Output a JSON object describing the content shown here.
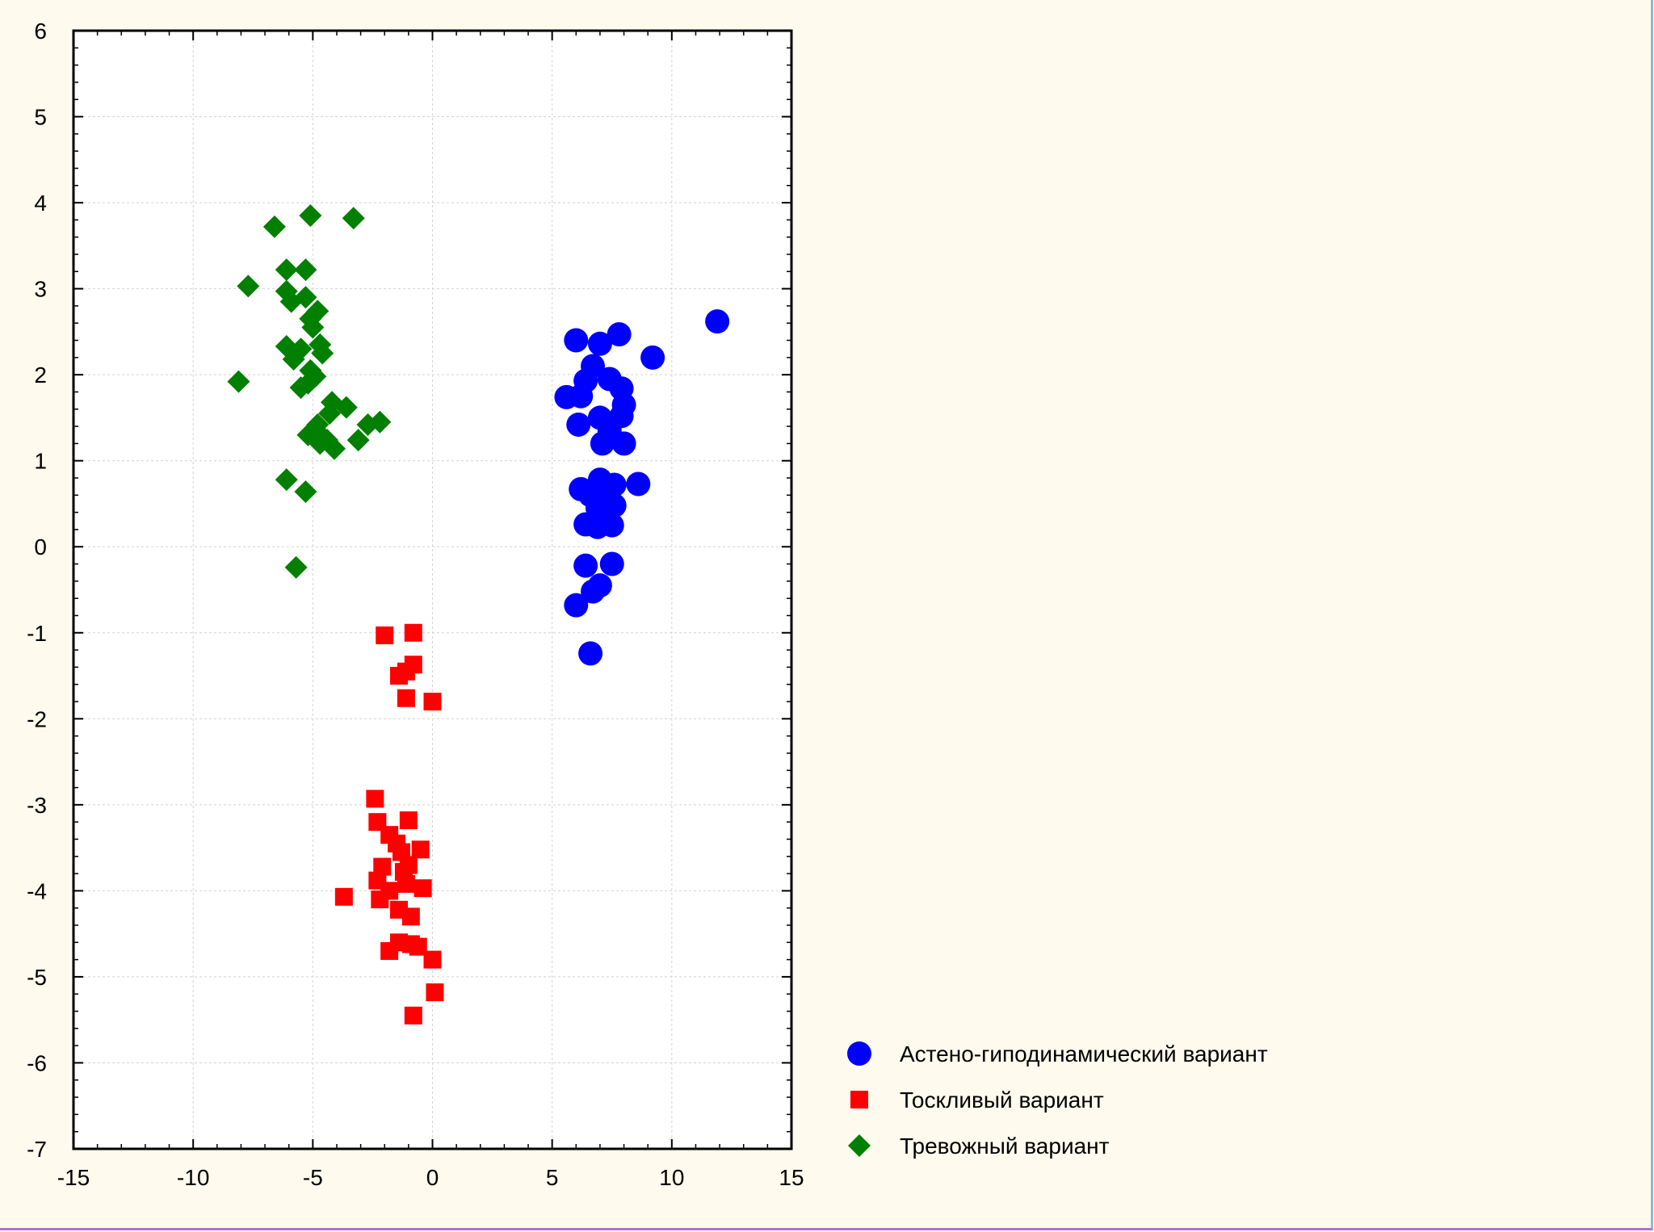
{
  "chart_data": {
    "type": "scatter",
    "title": "",
    "xlabel": "",
    "ylabel": "",
    "xlim": [
      -15,
      15
    ],
    "ylim": [
      -7,
      6
    ],
    "grid": true,
    "legend_position": "bottom-right outside plot",
    "x_ticks": [
      "-15",
      "-10",
      "-5",
      "0",
      "5",
      "10",
      "15"
    ],
    "y_ticks": [
      "6",
      "5",
      "4",
      "3",
      "2",
      "1",
      "0",
      "-1",
      "-2",
      "-3",
      "-4",
      "-5",
      "-6",
      "-7"
    ],
    "series": [
      {
        "name": "Астено-гиподинамический вариант",
        "marker": "circle",
        "color": "#0000ff",
        "points": [
          [
            11.9,
            2.62
          ],
          [
            9.2,
            2.2
          ],
          [
            7.8,
            2.47
          ],
          [
            6.0,
            2.4
          ],
          [
            7.0,
            2.36
          ],
          [
            6.7,
            2.1
          ],
          [
            6.4,
            1.93
          ],
          [
            7.4,
            1.95
          ],
          [
            7.9,
            1.84
          ],
          [
            5.6,
            1.74
          ],
          [
            6.2,
            1.75
          ],
          [
            8.0,
            1.65
          ],
          [
            7.9,
            1.52
          ],
          [
            7.0,
            1.5
          ],
          [
            6.1,
            1.42
          ],
          [
            7.4,
            1.35
          ],
          [
            7.1,
            1.2
          ],
          [
            8.0,
            1.2
          ],
          [
            7.0,
            0.78
          ],
          [
            7.6,
            0.72
          ],
          [
            8.6,
            0.73
          ],
          [
            6.2,
            0.67
          ],
          [
            6.6,
            0.6
          ],
          [
            7.3,
            0.58
          ],
          [
            6.9,
            0.45
          ],
          [
            7.6,
            0.48
          ],
          [
            6.4,
            0.26
          ],
          [
            6.9,
            0.23
          ],
          [
            7.5,
            0.25
          ],
          [
            6.4,
            -0.22
          ],
          [
            7.5,
            -0.2
          ],
          [
            7.0,
            -0.45
          ],
          [
            6.7,
            -0.52
          ],
          [
            6.0,
            -0.68
          ],
          [
            6.6,
            -1.24
          ]
        ]
      },
      {
        "name": "Тоскливый вариант",
        "marker": "square",
        "color": "#ff0000",
        "points": [
          [
            -2.0,
            -1.03
          ],
          [
            -0.8,
            -1.0
          ],
          [
            -0.8,
            -1.37
          ],
          [
            -1.1,
            -1.45
          ],
          [
            -1.4,
            -1.5
          ],
          [
            -1.1,
            -1.76
          ],
          [
            0.0,
            -1.8
          ],
          [
            -2.4,
            -2.93
          ],
          [
            -1.0,
            -3.18
          ],
          [
            -2.3,
            -3.2
          ],
          [
            -1.8,
            -3.35
          ],
          [
            -1.5,
            -3.45
          ],
          [
            -1.3,
            -3.55
          ],
          [
            -0.5,
            -3.52
          ],
          [
            -1.0,
            -3.7
          ],
          [
            -2.1,
            -3.72
          ],
          [
            -1.2,
            -3.78
          ],
          [
            -2.3,
            -3.88
          ],
          [
            -1.1,
            -3.92
          ],
          [
            -0.4,
            -3.97
          ],
          [
            -1.8,
            -4.0
          ],
          [
            -3.7,
            -4.07
          ],
          [
            -2.2,
            -4.1
          ],
          [
            -1.4,
            -4.22
          ],
          [
            -0.9,
            -4.3
          ],
          [
            -1.4,
            -4.6
          ],
          [
            -1.8,
            -4.7
          ],
          [
            -0.6,
            -4.65
          ],
          [
            -0.9,
            -4.62
          ],
          [
            0.0,
            -4.8
          ],
          [
            0.1,
            -5.18
          ],
          [
            -0.8,
            -5.45
          ]
        ]
      },
      {
        "name": "Тревожный вариант",
        "marker": "diamond",
        "color": "#007f00",
        "points": [
          [
            -5.1,
            3.85
          ],
          [
            -3.3,
            3.82
          ],
          [
            -6.6,
            3.72
          ],
          [
            -6.1,
            3.22
          ],
          [
            -5.3,
            3.22
          ],
          [
            -7.7,
            3.03
          ],
          [
            -6.1,
            2.97
          ],
          [
            -5.3,
            2.9
          ],
          [
            -5.9,
            2.85
          ],
          [
            -4.8,
            2.74
          ],
          [
            -5.1,
            2.65
          ],
          [
            -5.0,
            2.55
          ],
          [
            -6.1,
            2.33
          ],
          [
            -4.7,
            2.35
          ],
          [
            -5.5,
            2.3
          ],
          [
            -4.6,
            2.25
          ],
          [
            -5.8,
            2.18
          ],
          [
            -5.1,
            2.05
          ],
          [
            -4.9,
            1.98
          ],
          [
            -8.1,
            1.92
          ],
          [
            -5.5,
            1.85
          ],
          [
            -5.2,
            1.9
          ],
          [
            -4.2,
            1.68
          ],
          [
            -3.6,
            1.62
          ],
          [
            -4.3,
            1.55
          ],
          [
            -2.2,
            1.45
          ],
          [
            -2.7,
            1.42
          ],
          [
            -4.8,
            1.42
          ],
          [
            -4.9,
            1.35
          ],
          [
            -5.2,
            1.3
          ],
          [
            -4.6,
            1.28
          ],
          [
            -4.4,
            1.24
          ],
          [
            -3.1,
            1.24
          ],
          [
            -4.7,
            1.2
          ],
          [
            -4.1,
            1.14
          ],
          [
            -6.1,
            0.78
          ],
          [
            -5.3,
            0.64
          ],
          [
            -5.7,
            -0.24
          ]
        ]
      }
    ]
  }
}
